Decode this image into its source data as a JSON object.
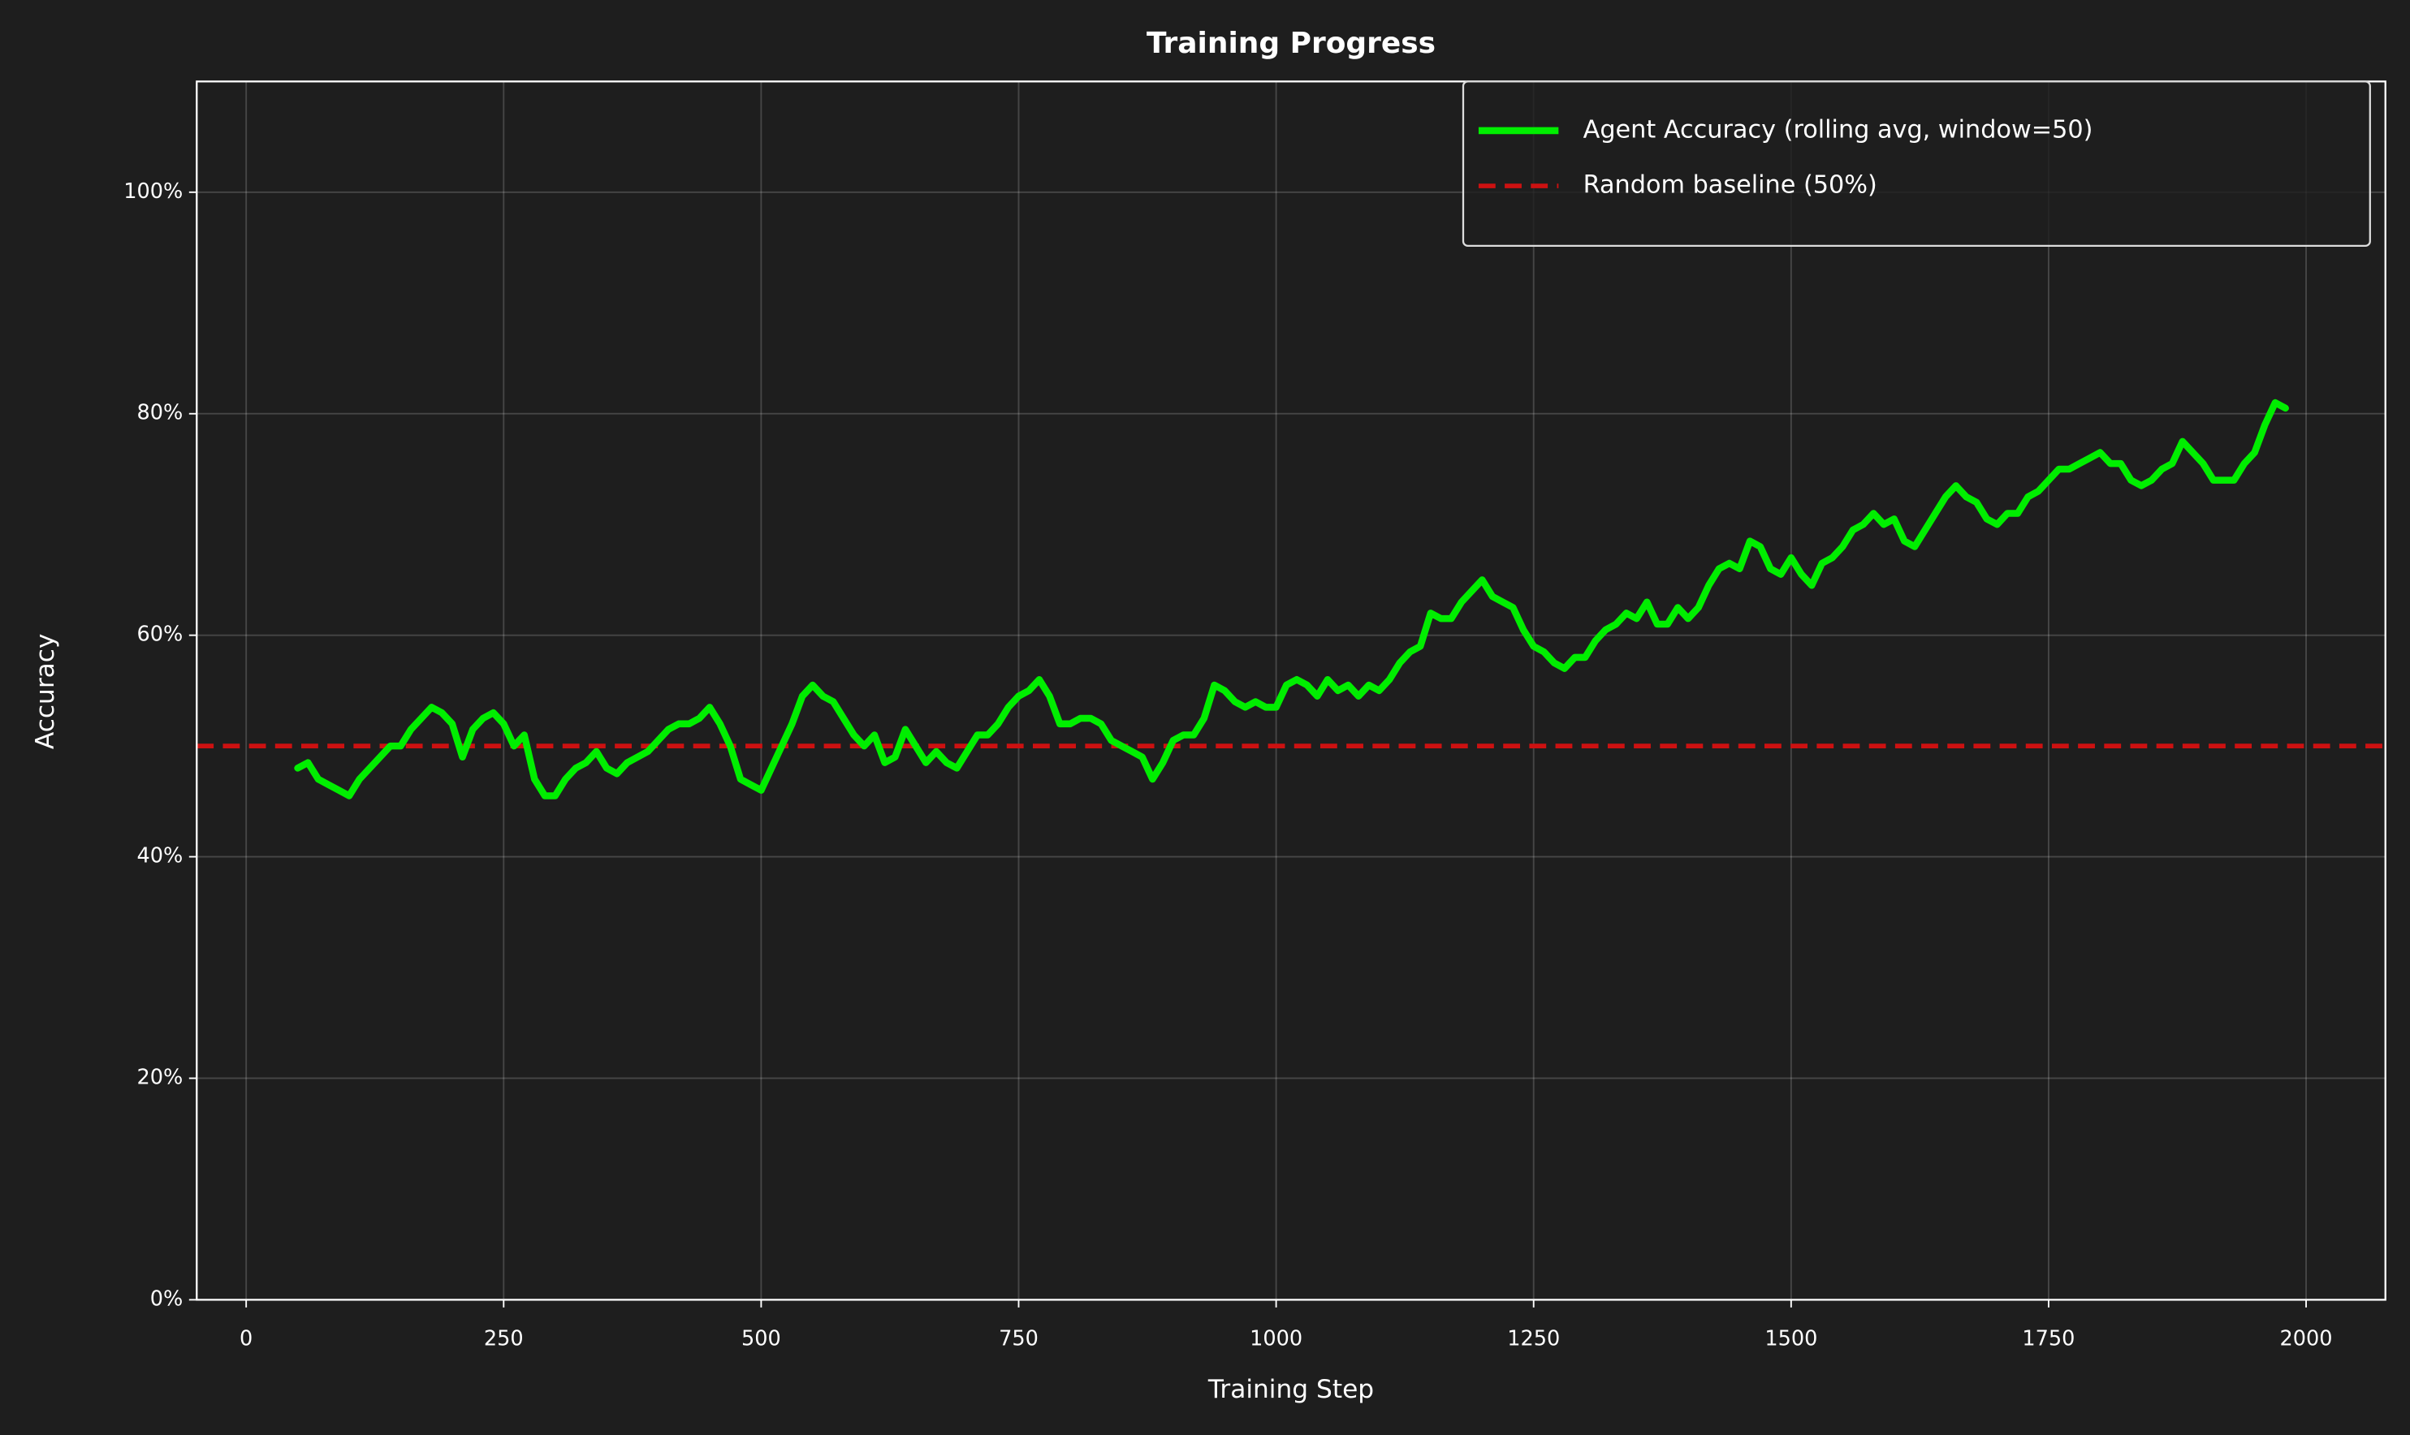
{
  "chart_data": {
    "type": "line",
    "title": "Training Progress",
    "x_label": "Training Step",
    "y_label": "Accuracy",
    "x": [
      50,
      60,
      70,
      80,
      90,
      100,
      110,
      120,
      130,
      140,
      150,
      160,
      170,
      180,
      190,
      200,
      210,
      220,
      230,
      240,
      250,
      260,
      270,
      280,
      290,
      300,
      310,
      320,
      330,
      340,
      350,
      360,
      370,
      380,
      390,
      400,
      410,
      420,
      430,
      440,
      450,
      460,
      470,
      480,
      490,
      500,
      510,
      520,
      530,
      540,
      550,
      560,
      570,
      580,
      590,
      600,
      610,
      620,
      630,
      640,
      650,
      660,
      670,
      680,
      690,
      700,
      710,
      720,
      730,
      740,
      750,
      760,
      770,
      780,
      790,
      800,
      810,
      820,
      830,
      840,
      850,
      860,
      870,
      880,
      890,
      900,
      910,
      920,
      930,
      940,
      950,
      960,
      970,
      980,
      990,
      1000,
      1010,
      1020,
      1030,
      1040,
      1050,
      1060,
      1070,
      1080,
      1090,
      1100,
      1110,
      1120,
      1130,
      1140,
      1150,
      1160,
      1170,
      1180,
      1190,
      1200,
      1210,
      1220,
      1230,
      1240,
      1250,
      1260,
      1270,
      1280,
      1290,
      1300,
      1310,
      1320,
      1330,
      1340,
      1350,
      1360,
      1370,
      1380,
      1390,
      1400,
      1410,
      1420,
      1430,
      1440,
      1450,
      1460,
      1470,
      1480,
      1490,
      1500,
      1510,
      1520,
      1530,
      1540,
      1550,
      1560,
      1570,
      1580,
      1590,
      1600,
      1610,
      1620,
      1630,
      1640,
      1650,
      1660,
      1670,
      1680,
      1690,
      1700,
      1710,
      1720,
      1730,
      1740,
      1750,
      1760,
      1770,
      1780,
      1790,
      1800,
      1810,
      1820,
      1830,
      1840,
      1850,
      1860,
      1870,
      1880,
      1890,
      1900,
      1910,
      1920,
      1930,
      1940,
      1950,
      1960,
      1970,
      1980
    ],
    "series": [
      {
        "name": "Agent Accuracy (rolling avg, window=50)",
        "color": "#00ee00",
        "values": [
          48,
          48.5,
          47,
          46.5,
          46,
          45.5,
          47,
          48,
          49,
          50,
          50,
          51.5,
          52.5,
          53.5,
          53,
          52,
          49,
          51.5,
          52.5,
          53,
          52,
          50,
          51,
          47,
          45.5,
          45.5,
          47,
          48,
          48.5,
          49.5,
          48,
          47.5,
          48.5,
          49,
          49.5,
          50.5,
          51.5,
          52,
          52,
          52.5,
          53.5,
          52,
          50,
          47,
          46.5,
          46,
          48,
          50,
          52,
          54.5,
          55.5,
          54.5,
          54,
          52.5,
          51,
          50,
          51,
          48.5,
          49,
          51.5,
          50,
          48.5,
          49.5,
          48.5,
          48,
          49.5,
          51,
          51,
          52,
          53.5,
          54.5,
          55,
          56,
          54.5,
          52,
          52,
          52.5,
          52.5,
          52,
          50.5,
          50,
          49.5,
          49,
          47,
          48.5,
          50.5,
          51,
          51,
          52.5,
          55.5,
          55,
          54,
          53.5,
          54,
          53.5,
          53.5,
          55.5,
          56,
          55.5,
          54.5,
          56,
          55,
          55.5,
          54.5,
          55.5,
          55,
          56,
          57.5,
          58.5,
          59,
          62,
          61.5,
          61.5,
          63,
          64,
          65,
          63.5,
          63,
          62.5,
          60.5,
          59,
          58.5,
          57.5,
          57,
          58,
          58,
          59.5,
          60.5,
          61,
          62,
          61.5,
          63,
          61,
          61,
          62.5,
          61.5,
          62.5,
          64.5,
          66,
          66.5,
          66,
          68.5,
          68,
          66,
          65.5,
          67,
          65.5,
          64.5,
          66.5,
          67,
          68,
          69.5,
          70,
          71,
          70,
          70.5,
          68.5,
          68,
          69.5,
          71,
          72.5,
          73.5,
          72.5,
          72,
          70.5,
          70,
          71,
          71,
          72.5,
          73,
          74,
          75,
          75,
          75.5,
          76,
          76.5,
          75.5,
          75.5,
          74,
          73.5,
          74,
          75,
          75.5,
          77.5,
          76.5,
          75.5,
          74,
          74,
          74,
          75.5,
          76.5,
          79,
          81,
          80.5
        ]
      }
    ],
    "baseline": {
      "name": "Random baseline (50%)",
      "color": "#cc1111",
      "value": 50
    },
    "xlim": [
      -48,
      2077
    ],
    "ylim": [
      0,
      110
    ],
    "xticks": [
      0,
      250,
      500,
      750,
      1000,
      1250,
      1500,
      1750,
      2000
    ],
    "yticks": [
      {
        "value": 0,
        "label": "0%"
      },
      {
        "value": 20,
        "label": "20%"
      },
      {
        "value": 40,
        "label": "40%"
      },
      {
        "value": 60,
        "label": "60%"
      },
      {
        "value": 80,
        "label": "80%"
      },
      {
        "value": 100,
        "label": "100%"
      }
    ],
    "grid": true,
    "legend": "upper right"
  }
}
